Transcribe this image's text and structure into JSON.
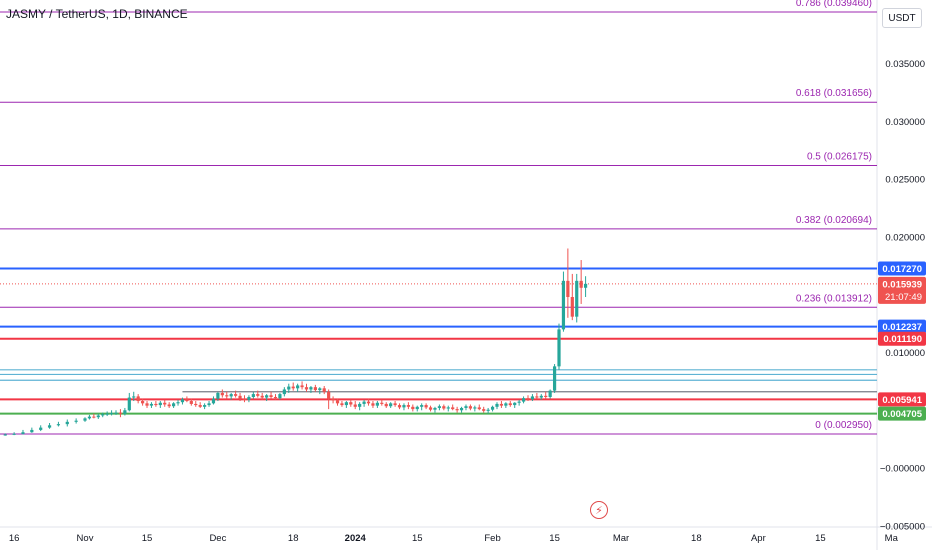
{
  "header": {
    "title": "JASMY / TetherUS, 1D, BINANCE",
    "currency": "USDT"
  },
  "colors": {
    "up": "#26a69a",
    "down": "#ef5350",
    "fib": "#9c27b0",
    "blue_level": "#2962ff",
    "red_level": "#f23645",
    "green_level": "#4caf50",
    "light_blue": "#5fb3d4"
  },
  "chart_data": {
    "type": "candlestick",
    "y_axis": {
      "ticks": [
        {
          "value": 0.035,
          "label": "0.035000"
        },
        {
          "value": 0.03,
          "label": "0.030000"
        },
        {
          "value": 0.025,
          "label": "0.025000"
        },
        {
          "value": 0.02,
          "label": "0.020000"
        },
        {
          "value": 0.01,
          "label": "0.010000"
        },
        {
          "value": 0.0,
          "label": "−0.000000"
        },
        {
          "value": -0.005,
          "label": "−0.005000"
        }
      ],
      "ylim": [
        -0.0051,
        0.0405
      ]
    },
    "x_axis": {
      "ticks": [
        {
          "label": "16",
          "day": -16
        },
        {
          "label": "Nov",
          "day": 0
        },
        {
          "label": "15",
          "day": 14
        },
        {
          "label": "Dec",
          "day": 30
        },
        {
          "label": "18",
          "day": 47
        },
        {
          "label": "2024",
          "day": 61
        },
        {
          "label": "15",
          "day": 75
        },
        {
          "label": "Feb",
          "day": 92
        },
        {
          "label": "15",
          "day": 106
        },
        {
          "label": "Mar",
          "day": 121
        },
        {
          "label": "18",
          "day": 138
        },
        {
          "label": "Apr",
          "day": 152
        },
        {
          "label": "15",
          "day": 166
        },
        {
          "label": "Ma",
          "day": 182
        }
      ],
      "start_date": "2023-11-01"
    },
    "fib_levels": [
      {
        "label": "0.786 (0.039460)",
        "value": 0.03946
      },
      {
        "label": "0.618 (0.031656)",
        "value": 0.031656
      },
      {
        "label": "0.5 (0.026175)",
        "value": 0.026175
      },
      {
        "label": "0.382 (0.020694)",
        "value": 0.020694
      },
      {
        "label": "0.236 (0.013912)",
        "value": 0.013912
      },
      {
        "label": "0 (0.002950)",
        "value": 0.00295
      }
    ],
    "price_levels": [
      {
        "label": "0.017270",
        "value": 0.01727,
        "color": "#2962ff"
      },
      {
        "label": "0.012237",
        "value": 0.012237,
        "color": "#2962ff"
      },
      {
        "label": "0.011190",
        "value": 0.01119,
        "color": "#f23645"
      },
      {
        "label": "0.005941",
        "value": 0.005941,
        "color": "#f23645"
      },
      {
        "label": "0.004705",
        "value": 0.004705,
        "color": "#4caf50"
      }
    ],
    "extra_lines": [
      {
        "value": 0.0085,
        "color": "#5fb3d4"
      },
      {
        "value": 0.0081,
        "color": "#5fb3d4"
      },
      {
        "value": 0.0076,
        "color": "#5fb3d4"
      },
      {
        "value": 0.0066,
        "color": "#787b86",
        "from_day": 22
      }
    ],
    "current_price": {
      "label": "0.015939",
      "value": 0.015939,
      "timer": "21:07:49"
    },
    "candles": [
      {
        "d": -22,
        "o": 0.00285,
        "h": 0.0029,
        "l": 0.00275,
        "c": 0.00283
      },
      {
        "d": -20,
        "o": 0.00283,
        "h": 0.0029,
        "l": 0.00275,
        "c": 0.00286
      },
      {
        "d": -18,
        "o": 0.00286,
        "h": 0.003,
        "l": 0.0028,
        "c": 0.0029
      },
      {
        "d": -16,
        "o": 0.0029,
        "h": 0.0031,
        "l": 0.00285,
        "c": 0.00296
      },
      {
        "d": -14,
        "o": 0.00296,
        "h": 0.0033,
        "l": 0.0029,
        "c": 0.0031
      },
      {
        "d": -12,
        "o": 0.0031,
        "h": 0.0035,
        "l": 0.00305,
        "c": 0.0033
      },
      {
        "d": -10,
        "o": 0.0033,
        "h": 0.0037,
        "l": 0.0032,
        "c": 0.0035
      },
      {
        "d": -8,
        "o": 0.0035,
        "h": 0.0039,
        "l": 0.0034,
        "c": 0.0037
      },
      {
        "d": -6,
        "o": 0.0037,
        "h": 0.004,
        "l": 0.0036,
        "c": 0.0038
      },
      {
        "d": -4,
        "o": 0.0038,
        "h": 0.0042,
        "l": 0.0036,
        "c": 0.004
      },
      {
        "d": -2,
        "o": 0.004,
        "h": 0.0043,
        "l": 0.00385,
        "c": 0.0041
      },
      {
        "d": 0,
        "o": 0.0041,
        "h": 0.0044,
        "l": 0.004,
        "c": 0.0043
      },
      {
        "d": 1,
        "o": 0.0043,
        "h": 0.0046,
        "l": 0.0042,
        "c": 0.00445
      },
      {
        "d": 2,
        "o": 0.00445,
        "h": 0.0047,
        "l": 0.0043,
        "c": 0.0044
      },
      {
        "d": 3,
        "o": 0.0044,
        "h": 0.0047,
        "l": 0.00425,
        "c": 0.00455
      },
      {
        "d": 4,
        "o": 0.00455,
        "h": 0.0048,
        "l": 0.0044,
        "c": 0.00465
      },
      {
        "d": 5,
        "o": 0.00465,
        "h": 0.0049,
        "l": 0.0045,
        "c": 0.0047
      },
      {
        "d": 6,
        "o": 0.0047,
        "h": 0.005,
        "l": 0.00455,
        "c": 0.00475
      },
      {
        "d": 7,
        "o": 0.00475,
        "h": 0.005,
        "l": 0.0046,
        "c": 0.0048
      },
      {
        "d": 8,
        "o": 0.0048,
        "h": 0.0051,
        "l": 0.0044,
        "c": 0.0047
      },
      {
        "d": 9,
        "o": 0.0047,
        "h": 0.0052,
        "l": 0.00455,
        "c": 0.005
      },
      {
        "d": 10,
        "o": 0.005,
        "h": 0.0065,
        "l": 0.0049,
        "c": 0.0061
      },
      {
        "d": 11,
        "o": 0.0061,
        "h": 0.0066,
        "l": 0.0058,
        "c": 0.0062
      },
      {
        "d": 12,
        "o": 0.0062,
        "h": 0.0064,
        "l": 0.0056,
        "c": 0.0058
      },
      {
        "d": 13,
        "o": 0.0058,
        "h": 0.006,
        "l": 0.0054,
        "c": 0.0056
      },
      {
        "d": 14,
        "o": 0.0056,
        "h": 0.0058,
        "l": 0.0052,
        "c": 0.0054
      },
      {
        "d": 15,
        "o": 0.0054,
        "h": 0.0057,
        "l": 0.0052,
        "c": 0.00555
      },
      {
        "d": 16,
        "o": 0.00555,
        "h": 0.0058,
        "l": 0.0053,
        "c": 0.00545
      },
      {
        "d": 17,
        "o": 0.00545,
        "h": 0.0058,
        "l": 0.0052,
        "c": 0.00565
      },
      {
        "d": 18,
        "o": 0.00565,
        "h": 0.0059,
        "l": 0.0053,
        "c": 0.0055
      },
      {
        "d": 19,
        "o": 0.0055,
        "h": 0.0057,
        "l": 0.0052,
        "c": 0.00535
      },
      {
        "d": 20,
        "o": 0.00535,
        "h": 0.0057,
        "l": 0.0052,
        "c": 0.0056
      },
      {
        "d": 21,
        "o": 0.0056,
        "h": 0.0059,
        "l": 0.0054,
        "c": 0.0057
      },
      {
        "d": 22,
        "o": 0.0057,
        "h": 0.0061,
        "l": 0.0055,
        "c": 0.00595
      },
      {
        "d": 23,
        "o": 0.00595,
        "h": 0.0062,
        "l": 0.0057,
        "c": 0.0058
      },
      {
        "d": 24,
        "o": 0.0058,
        "h": 0.006,
        "l": 0.0054,
        "c": 0.00555
      },
      {
        "d": 25,
        "o": 0.00555,
        "h": 0.0058,
        "l": 0.0053,
        "c": 0.00545
      },
      {
        "d": 26,
        "o": 0.00545,
        "h": 0.0057,
        "l": 0.0052,
        "c": 0.0053
      },
      {
        "d": 27,
        "o": 0.0053,
        "h": 0.0056,
        "l": 0.0051,
        "c": 0.00545
      },
      {
        "d": 28,
        "o": 0.00545,
        "h": 0.0058,
        "l": 0.0053,
        "c": 0.0056
      },
      {
        "d": 29,
        "o": 0.0056,
        "h": 0.0062,
        "l": 0.0055,
        "c": 0.006
      },
      {
        "d": 30,
        "o": 0.006,
        "h": 0.0066,
        "l": 0.0058,
        "c": 0.0065
      },
      {
        "d": 31,
        "o": 0.0065,
        "h": 0.0068,
        "l": 0.0061,
        "c": 0.0063
      },
      {
        "d": 32,
        "o": 0.0063,
        "h": 0.0066,
        "l": 0.006,
        "c": 0.0062
      },
      {
        "d": 33,
        "o": 0.0062,
        "h": 0.0065,
        "l": 0.0059,
        "c": 0.0064
      },
      {
        "d": 34,
        "o": 0.0064,
        "h": 0.0067,
        "l": 0.0061,
        "c": 0.00625
      },
      {
        "d": 35,
        "o": 0.00625,
        "h": 0.0065,
        "l": 0.0058,
        "c": 0.006
      },
      {
        "d": 36,
        "o": 0.006,
        "h": 0.0063,
        "l": 0.0057,
        "c": 0.0059
      },
      {
        "d": 37,
        "o": 0.0059,
        "h": 0.0063,
        "l": 0.0057,
        "c": 0.00615
      },
      {
        "d": 38,
        "o": 0.00615,
        "h": 0.0066,
        "l": 0.006,
        "c": 0.0064
      },
      {
        "d": 39,
        "o": 0.0064,
        "h": 0.0067,
        "l": 0.0061,
        "c": 0.00625
      },
      {
        "d": 40,
        "o": 0.00625,
        "h": 0.0065,
        "l": 0.0059,
        "c": 0.0061
      },
      {
        "d": 41,
        "o": 0.0061,
        "h": 0.0064,
        "l": 0.0058,
        "c": 0.0063
      },
      {
        "d": 42,
        "o": 0.0063,
        "h": 0.0066,
        "l": 0.006,
        "c": 0.00615
      },
      {
        "d": 43,
        "o": 0.00615,
        "h": 0.0064,
        "l": 0.0059,
        "c": 0.00605
      },
      {
        "d": 44,
        "o": 0.00605,
        "h": 0.0065,
        "l": 0.0059,
        "c": 0.0064
      },
      {
        "d": 45,
        "o": 0.0064,
        "h": 0.007,
        "l": 0.0062,
        "c": 0.0068
      },
      {
        "d": 46,
        "o": 0.0068,
        "h": 0.0073,
        "l": 0.0065,
        "c": 0.00705
      },
      {
        "d": 47,
        "o": 0.00705,
        "h": 0.0074,
        "l": 0.0067,
        "c": 0.0069
      },
      {
        "d": 48,
        "o": 0.0069,
        "h": 0.0073,
        "l": 0.0066,
        "c": 0.00715
      },
      {
        "d": 49,
        "o": 0.00715,
        "h": 0.0075,
        "l": 0.0068,
        "c": 0.007
      },
      {
        "d": 50,
        "o": 0.007,
        "h": 0.0073,
        "l": 0.0066,
        "c": 0.0068
      },
      {
        "d": 51,
        "o": 0.0068,
        "h": 0.0071,
        "l": 0.0065,
        "c": 0.007
      },
      {
        "d": 52,
        "o": 0.007,
        "h": 0.0072,
        "l": 0.0066,
        "c": 0.00675
      },
      {
        "d": 53,
        "o": 0.00675,
        "h": 0.007,
        "l": 0.0064,
        "c": 0.0069
      },
      {
        "d": 54,
        "o": 0.0069,
        "h": 0.0071,
        "l": 0.0064,
        "c": 0.0066
      },
      {
        "d": 55,
        "o": 0.0066,
        "h": 0.0068,
        "l": 0.0051,
        "c": 0.006
      },
      {
        "d": 56,
        "o": 0.006,
        "h": 0.0062,
        "l": 0.0056,
        "c": 0.00585
      },
      {
        "d": 57,
        "o": 0.00585,
        "h": 0.006,
        "l": 0.0054,
        "c": 0.0056
      },
      {
        "d": 58,
        "o": 0.0056,
        "h": 0.0058,
        "l": 0.0053,
        "c": 0.00545
      },
      {
        "d": 59,
        "o": 0.00545,
        "h": 0.0058,
        "l": 0.0052,
        "c": 0.0057
      },
      {
        "d": 60,
        "o": 0.0057,
        "h": 0.0059,
        "l": 0.0053,
        "c": 0.0055
      },
      {
        "d": 61,
        "o": 0.0055,
        "h": 0.0058,
        "l": 0.0051,
        "c": 0.0053
      },
      {
        "d": 62,
        "o": 0.0053,
        "h": 0.0057,
        "l": 0.005,
        "c": 0.00555
      },
      {
        "d": 63,
        "o": 0.00555,
        "h": 0.0059,
        "l": 0.0053,
        "c": 0.00575
      },
      {
        "d": 64,
        "o": 0.00575,
        "h": 0.006,
        "l": 0.0054,
        "c": 0.0056
      },
      {
        "d": 65,
        "o": 0.0056,
        "h": 0.0058,
        "l": 0.0052,
        "c": 0.0054
      },
      {
        "d": 66,
        "o": 0.0054,
        "h": 0.0058,
        "l": 0.0052,
        "c": 0.00565
      },
      {
        "d": 67,
        "o": 0.00565,
        "h": 0.0059,
        "l": 0.0054,
        "c": 0.00555
      },
      {
        "d": 68,
        "o": 0.00555,
        "h": 0.0057,
        "l": 0.0052,
        "c": 0.00535
      },
      {
        "d": 69,
        "o": 0.00535,
        "h": 0.0057,
        "l": 0.0052,
        "c": 0.0056
      },
      {
        "d": 70,
        "o": 0.0056,
        "h": 0.0058,
        "l": 0.0053,
        "c": 0.00545
      },
      {
        "d": 71,
        "o": 0.00545,
        "h": 0.0056,
        "l": 0.0051,
        "c": 0.00525
      },
      {
        "d": 72,
        "o": 0.00525,
        "h": 0.0056,
        "l": 0.005,
        "c": 0.00545
      },
      {
        "d": 73,
        "o": 0.00545,
        "h": 0.0057,
        "l": 0.0051,
        "c": 0.0053
      },
      {
        "d": 74,
        "o": 0.0053,
        "h": 0.0055,
        "l": 0.0049,
        "c": 0.0051
      },
      {
        "d": 75,
        "o": 0.0051,
        "h": 0.0054,
        "l": 0.0049,
        "c": 0.0053
      },
      {
        "d": 76,
        "o": 0.0053,
        "h": 0.0056,
        "l": 0.005,
        "c": 0.00545
      },
      {
        "d": 77,
        "o": 0.00545,
        "h": 0.0056,
        "l": 0.0051,
        "c": 0.00525
      },
      {
        "d": 78,
        "o": 0.00525,
        "h": 0.0054,
        "l": 0.0049,
        "c": 0.00505
      },
      {
        "d": 79,
        "o": 0.00505,
        "h": 0.0053,
        "l": 0.0048,
        "c": 0.0052
      },
      {
        "d": 80,
        "o": 0.0052,
        "h": 0.0055,
        "l": 0.005,
        "c": 0.00535
      },
      {
        "d": 81,
        "o": 0.00535,
        "h": 0.0055,
        "l": 0.005,
        "c": 0.00515
      },
      {
        "d": 82,
        "o": 0.00515,
        "h": 0.0054,
        "l": 0.0049,
        "c": 0.00525
      },
      {
        "d": 83,
        "o": 0.00525,
        "h": 0.0055,
        "l": 0.005,
        "c": 0.0051
      },
      {
        "d": 84,
        "o": 0.0051,
        "h": 0.0053,
        "l": 0.0048,
        "c": 0.005
      },
      {
        "d": 85,
        "o": 0.005,
        "h": 0.0053,
        "l": 0.0048,
        "c": 0.0052
      },
      {
        "d": 86,
        "o": 0.0052,
        "h": 0.0055,
        "l": 0.005,
        "c": 0.00535
      },
      {
        "d": 87,
        "o": 0.00535,
        "h": 0.0055,
        "l": 0.005,
        "c": 0.00515
      },
      {
        "d": 88,
        "o": 0.00515,
        "h": 0.0054,
        "l": 0.0049,
        "c": 0.00525
      },
      {
        "d": 89,
        "o": 0.00525,
        "h": 0.0055,
        "l": 0.005,
        "c": 0.0051
      },
      {
        "d": 90,
        "o": 0.0051,
        "h": 0.0053,
        "l": 0.0048,
        "c": 0.00495
      },
      {
        "d": 91,
        "o": 0.00495,
        "h": 0.0052,
        "l": 0.0047,
        "c": 0.00505
      },
      {
        "d": 92,
        "o": 0.00505,
        "h": 0.0054,
        "l": 0.0049,
        "c": 0.0053
      },
      {
        "d": 93,
        "o": 0.0053,
        "h": 0.0057,
        "l": 0.0051,
        "c": 0.00555
      },
      {
        "d": 94,
        "o": 0.00555,
        "h": 0.0058,
        "l": 0.0052,
        "c": 0.0054
      },
      {
        "d": 95,
        "o": 0.0054,
        "h": 0.0057,
        "l": 0.0052,
        "c": 0.0056
      },
      {
        "d": 96,
        "o": 0.0056,
        "h": 0.0058,
        "l": 0.0053,
        "c": 0.00545
      },
      {
        "d": 97,
        "o": 0.00545,
        "h": 0.0057,
        "l": 0.0052,
        "c": 0.00565
      },
      {
        "d": 98,
        "o": 0.00565,
        "h": 0.0059,
        "l": 0.0054,
        "c": 0.00575
      },
      {
        "d": 99,
        "o": 0.00575,
        "h": 0.0062,
        "l": 0.0056,
        "c": 0.00605
      },
      {
        "d": 100,
        "o": 0.00605,
        "h": 0.0063,
        "l": 0.0058,
        "c": 0.00595
      },
      {
        "d": 101,
        "o": 0.00595,
        "h": 0.0064,
        "l": 0.0058,
        "c": 0.0062
      },
      {
        "d": 102,
        "o": 0.0062,
        "h": 0.0065,
        "l": 0.006,
        "c": 0.0061
      },
      {
        "d": 103,
        "o": 0.0061,
        "h": 0.0064,
        "l": 0.0059,
        "c": 0.00625
      },
      {
        "d": 104,
        "o": 0.00625,
        "h": 0.0066,
        "l": 0.006,
        "c": 0.00615
      },
      {
        "d": 105,
        "o": 0.00615,
        "h": 0.0068,
        "l": 0.006,
        "c": 0.0067
      },
      {
        "d": 106,
        "o": 0.0067,
        "h": 0.009,
        "l": 0.0065,
        "c": 0.0088
      },
      {
        "d": 107,
        "o": 0.0088,
        "h": 0.0125,
        "l": 0.0085,
        "c": 0.012
      },
      {
        "d": 108,
        "o": 0.012,
        "h": 0.017,
        "l": 0.0118,
        "c": 0.0162
      },
      {
        "d": 109,
        "o": 0.0162,
        "h": 0.019,
        "l": 0.013,
        "c": 0.0148
      },
      {
        "d": 110,
        "o": 0.0148,
        "h": 0.0168,
        "l": 0.0128,
        "c": 0.0131
      },
      {
        "d": 111,
        "o": 0.0131,
        "h": 0.0168,
        "l": 0.0126,
        "c": 0.0162
      },
      {
        "d": 112,
        "o": 0.0162,
        "h": 0.018,
        "l": 0.0142,
        "c": 0.0156
      },
      {
        "d": 113,
        "o": 0.0156,
        "h": 0.0166,
        "l": 0.0148,
        "c": 0.01594
      }
    ]
  }
}
